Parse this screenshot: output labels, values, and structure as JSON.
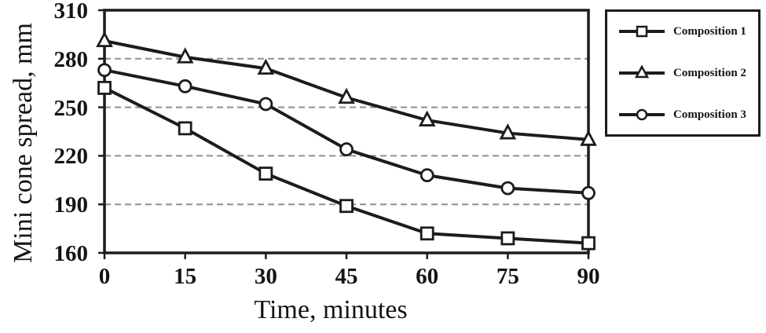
{
  "chart_data": {
    "type": "line",
    "title": "",
    "xlabel": "Time, minutes",
    "ylabel": "Mini cone spread, mm",
    "x": [
      0,
      15,
      30,
      45,
      60,
      75,
      90
    ],
    "xlim": [
      0,
      90
    ],
    "ylim": [
      160,
      310
    ],
    "yticks": [
      160,
      190,
      220,
      250,
      280,
      310
    ],
    "grid": "horizontal-dashed",
    "legend_position": "outside-top-right",
    "series": [
      {
        "name": "Composition 1",
        "marker": "square",
        "values": [
          262,
          237,
          209,
          189,
          172,
          169,
          166
        ]
      },
      {
        "name": "Composition 2",
        "marker": "triangle",
        "values": [
          291,
          281,
          274,
          256,
          242,
          234,
          230
        ]
      },
      {
        "name": "Composition 3",
        "marker": "circle",
        "values": [
          273,
          263,
          252,
          224,
          208,
          200,
          197
        ]
      }
    ],
    "colors": {
      "line": "#1c1c1c",
      "grid": "#8f8f8f",
      "marker_fill": "#ffffff",
      "background": "#ffffff"
    }
  }
}
